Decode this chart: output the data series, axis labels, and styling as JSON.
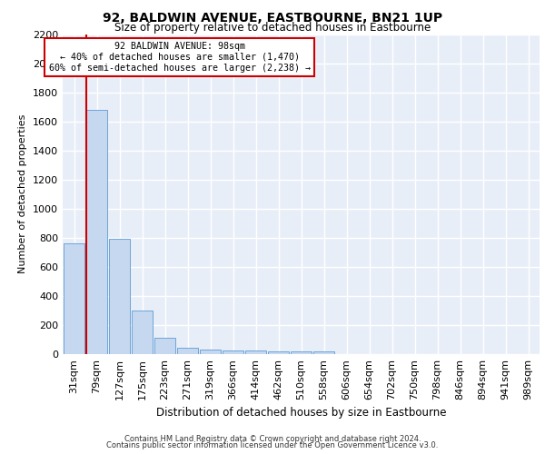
{
  "title": "92, BALDWIN AVENUE, EASTBOURNE, BN21 1UP",
  "subtitle": "Size of property relative to detached houses in Eastbourne",
  "xlabel": "Distribution of detached houses by size in Eastbourne",
  "ylabel": "Number of detached properties",
  "footer_line1": "Contains HM Land Registry data © Crown copyright and database right 2024.",
  "footer_line2": "Contains public sector information licensed under the Open Government Licence v3.0.",
  "bin_labels": [
    "31sqm",
    "79sqm",
    "127sqm",
    "175sqm",
    "223sqm",
    "271sqm",
    "319sqm",
    "366sqm",
    "414sqm",
    "462sqm",
    "510sqm",
    "558sqm",
    "606sqm",
    "654sqm",
    "702sqm",
    "750sqm",
    "798sqm",
    "846sqm",
    "894sqm",
    "941sqm",
    "989sqm"
  ],
  "bar_values": [
    760,
    1680,
    795,
    300,
    115,
    45,
    32,
    25,
    22,
    20,
    20,
    20,
    0,
    0,
    0,
    0,
    0,
    0,
    0,
    0,
    0
  ],
  "bar_color": "#c5d8f0",
  "bar_edge_color": "#5b9bd5",
  "annotation_line1": "92 BALDWIN AVENUE: 98sqm",
  "annotation_line2": "← 40% of detached houses are smaller (1,470)",
  "annotation_line3": "60% of semi-detached houses are larger (2,238) →",
  "ylim_max": 2200,
  "bg_color": "#e8eef8",
  "grid_color": "#ffffff"
}
